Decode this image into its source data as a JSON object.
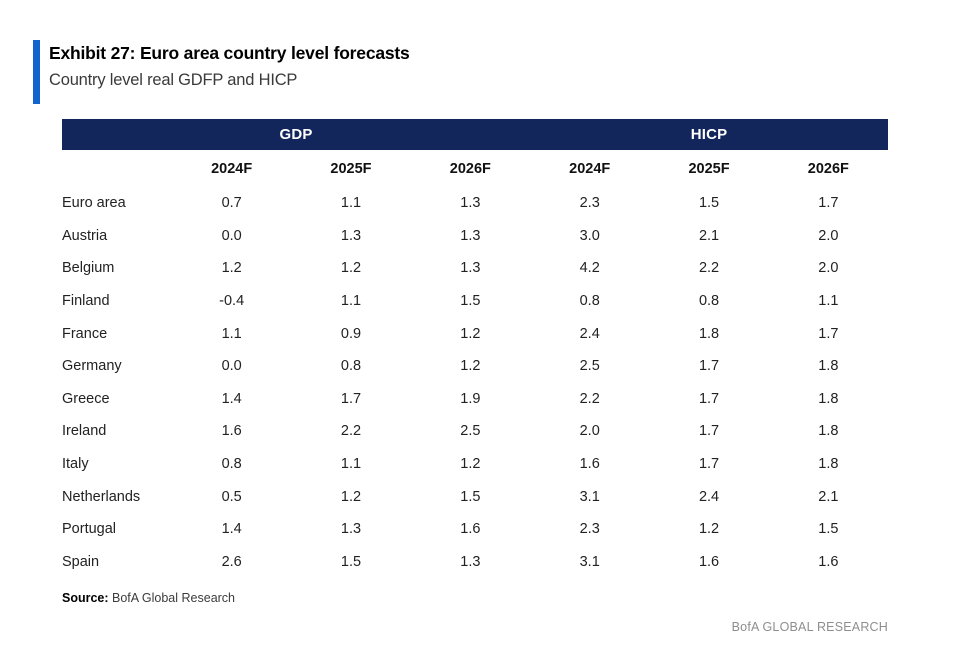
{
  "exhibit": {
    "title": "Exhibit 27: Euro area country level forecasts",
    "subtitle": "Country level real GDFP and HICP"
  },
  "chart_data": {
    "type": "table",
    "group_headers": [
      "GDP",
      "HICP"
    ],
    "columns": [
      "2024F",
      "2025F",
      "2026F",
      "2024F",
      "2025F",
      "2026F"
    ],
    "rows": [
      {
        "country": "Euro area",
        "values": [
          "0.7",
          "1.1",
          "1.3",
          "2.3",
          "1.5",
          "1.7"
        ]
      },
      {
        "country": "Austria",
        "values": [
          "0.0",
          "1.3",
          "1.3",
          "3.0",
          "2.1",
          "2.0"
        ]
      },
      {
        "country": "Belgium",
        "values": [
          "1.2",
          "1.2",
          "1.3",
          "4.2",
          "2.2",
          "2.0"
        ]
      },
      {
        "country": "Finland",
        "values": [
          "-0.4",
          "1.1",
          "1.5",
          "0.8",
          "0.8",
          "1.1"
        ]
      },
      {
        "country": "France",
        "values": [
          "1.1",
          "0.9",
          "1.2",
          "2.4",
          "1.8",
          "1.7"
        ]
      },
      {
        "country": "Germany",
        "values": [
          "0.0",
          "0.8",
          "1.2",
          "2.5",
          "1.7",
          "1.8"
        ]
      },
      {
        "country": "Greece",
        "values": [
          "1.4",
          "1.7",
          "1.9",
          "2.2",
          "1.7",
          "1.8"
        ]
      },
      {
        "country": "Ireland",
        "values": [
          "1.6",
          "2.2",
          "2.5",
          "2.0",
          "1.7",
          "1.8"
        ]
      },
      {
        "country": "Italy",
        "values": [
          "0.8",
          "1.1",
          "1.2",
          "1.6",
          "1.7",
          "1.8"
        ]
      },
      {
        "country": "Netherlands",
        "values": [
          "0.5",
          "1.2",
          "1.5",
          "3.1",
          "2.4",
          "2.1"
        ]
      },
      {
        "country": "Portugal",
        "values": [
          "1.4",
          "1.3",
          "1.6",
          "2.3",
          "1.2",
          "1.5"
        ]
      },
      {
        "country": "Spain",
        "values": [
          "2.6",
          "1.5",
          "1.3",
          "3.1",
          "1.6",
          "1.6"
        ]
      }
    ]
  },
  "footer": {
    "source_label": "Source:",
    "source_text": " BofA Global Research",
    "brand": "BofA GLOBAL RESEARCH"
  },
  "colors": {
    "header_navy": "#12265C",
    "accent_blue": "#1164CE",
    "brand_gray": "#8e8e8e"
  }
}
